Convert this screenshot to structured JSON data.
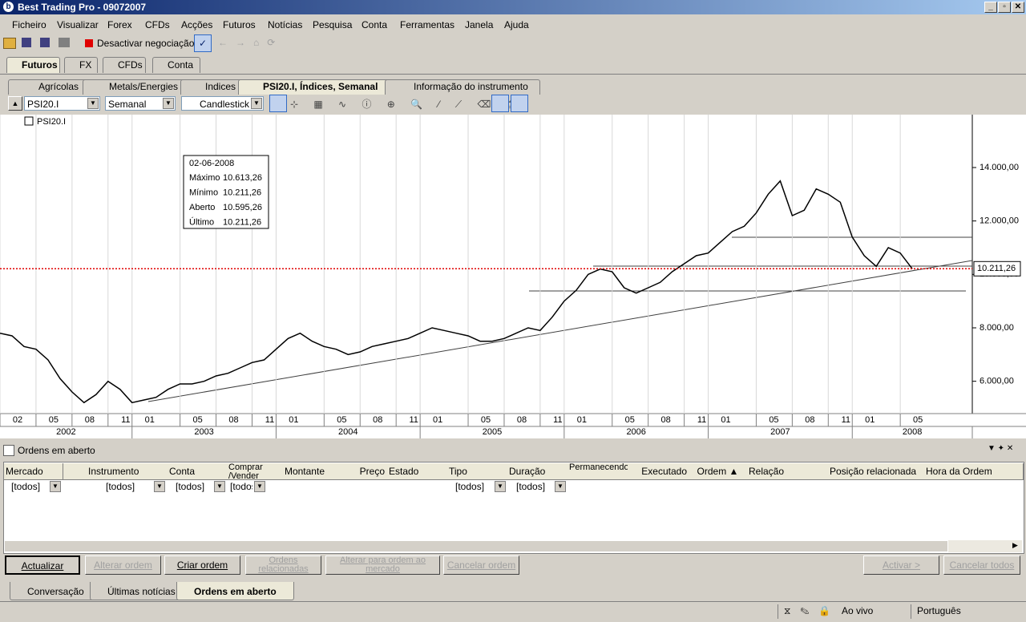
{
  "window": {
    "title": "Best Trading Pro - 09072007"
  },
  "menu": [
    "Ficheiro",
    "Visualizar",
    "Forex",
    "CFDs",
    "Acções",
    "Futuros",
    "Notícias",
    "Pesquisa",
    "Conta",
    "Ferramentas",
    "Janela",
    "Ajuda"
  ],
  "toolbar": {
    "trading_toggle": "Desactivar negociação"
  },
  "top_tabs": [
    "Futuros",
    "FX",
    "CFDs",
    "Conta"
  ],
  "instrument_tabs": [
    "Agrícolas",
    "Metals/Energies",
    "Indices",
    "PSI20.I, Índices, Semanal",
    "Informação do instrumento"
  ],
  "chart_toolbar": {
    "symbol": "PSI20.I",
    "period": "Semanal",
    "style": "Candlestick"
  },
  "chart_data": {
    "type": "line",
    "instrument_label": "PSI20.I",
    "x": [
      "2002-02",
      "2002-03",
      "2002-04",
      "2002-05",
      "2002-06",
      "2002-07",
      "2002-08",
      "2002-09",
      "2002-10",
      "2002-11",
      "2002-12",
      "2003-01",
      "2003-02",
      "2003-03",
      "2003-04",
      "2003-05",
      "2003-06",
      "2003-07",
      "2003-08",
      "2003-09",
      "2003-10",
      "2003-11",
      "2003-12",
      "2004-01",
      "2004-02",
      "2004-03",
      "2004-04",
      "2004-05",
      "2004-06",
      "2004-07",
      "2004-08",
      "2004-09",
      "2004-10",
      "2004-11",
      "2004-12",
      "2005-01",
      "2005-02",
      "2005-03",
      "2005-04",
      "2005-05",
      "2005-06",
      "2005-07",
      "2005-08",
      "2005-09",
      "2005-10",
      "2005-11",
      "2005-12",
      "2006-01",
      "2006-02",
      "2006-03",
      "2006-04",
      "2006-05",
      "2006-06",
      "2006-07",
      "2006-08",
      "2006-09",
      "2006-10",
      "2006-11",
      "2006-12",
      "2007-01",
      "2007-02",
      "2007-03",
      "2007-04",
      "2007-05",
      "2007-06",
      "2007-07",
      "2007-08",
      "2007-09",
      "2007-10",
      "2007-11",
      "2007-12",
      "2008-01",
      "2008-02",
      "2008-03",
      "2008-04",
      "2008-05",
      "2008-06"
    ],
    "series": [
      {
        "name": "PSI20.I",
        "color": "#000000",
        "values": [
          7800,
          7700,
          7300,
          7200,
          6800,
          6100,
          5600,
          5200,
          5500,
          6000,
          5700,
          5200,
          5300,
          5400,
          5700,
          5900,
          5900,
          6000,
          6200,
          6300,
          6500,
          6700,
          6800,
          7200,
          7600,
          7800,
          7500,
          7300,
          7200,
          7000,
          7100,
          7300,
          7400,
          7500,
          7600,
          7800,
          8000,
          7900,
          7800,
          7700,
          7500,
          7500,
          7600,
          7800,
          8000,
          7900,
          8400,
          9000,
          9400,
          10000,
          10200,
          10100,
          9500,
          9300,
          9500,
          9700,
          10100,
          10400,
          10700,
          10800,
          11200,
          11600,
          11800,
          12300,
          13000,
          13500,
          12200,
          12400,
          13200,
          13000,
          12700,
          11400,
          10700,
          10300,
          11000,
          10800,
          10211.26
        ]
      }
    ],
    "xlim": [
      "2002-02",
      "2008-11"
    ],
    "ylim": [
      4790,
      15980
    ],
    "yticks": [
      {
        "value": 6000,
        "label": "6.000,00"
      },
      {
        "value": 8000,
        "label": "8.000,00"
      },
      {
        "value": 10000,
        "label": "10.000,00"
      },
      {
        "value": 12000,
        "label": "12.000,00"
      },
      {
        "value": 14000,
        "label": "14.000,00"
      }
    ],
    "xticks": [
      {
        "value": "2002-02",
        "label": "02"
      },
      {
        "value": "2002-05",
        "label": "05"
      },
      {
        "value": "2002-08",
        "label": "08"
      },
      {
        "value": "2002-11",
        "label": "11"
      },
      {
        "value": "2003-01",
        "label": "01"
      },
      {
        "value": "2003-05",
        "label": "05"
      },
      {
        "value": "2003-08",
        "label": "08"
      },
      {
        "value": "2003-11",
        "label": "11"
      },
      {
        "value": "2004-01",
        "label": "01"
      },
      {
        "value": "2004-05",
        "label": "05"
      },
      {
        "value": "2004-08",
        "label": "08"
      },
      {
        "value": "2004-11",
        "label": "11"
      },
      {
        "value": "2005-01",
        "label": "01"
      },
      {
        "value": "2005-05",
        "label": "05"
      },
      {
        "value": "2005-08",
        "label": "08"
      },
      {
        "value": "2005-11",
        "label": "11"
      },
      {
        "value": "2006-01",
        "label": "01"
      },
      {
        "value": "2006-05",
        "label": "05"
      },
      {
        "value": "2006-08",
        "label": "08"
      },
      {
        "value": "2006-11",
        "label": "11"
      },
      {
        "value": "2007-01",
        "label": "01"
      },
      {
        "value": "2007-05",
        "label": "05"
      },
      {
        "value": "2007-08",
        "label": "08"
      },
      {
        "value": "2007-11",
        "label": "11"
      },
      {
        "value": "2008-01",
        "label": "01"
      },
      {
        "value": "2008-05",
        "label": "05"
      }
    ],
    "year_labels": [
      "2002",
      "2003",
      "2004",
      "2005",
      "2006",
      "2007",
      "2008"
    ],
    "grid": true,
    "last_price": {
      "value": 10211.26,
      "label": "10.211,26"
    },
    "tooltip": {
      "date": "02-06-2008",
      "rows": [
        {
          "label": "Máximo",
          "value": "10.613,26"
        },
        {
          "label": "Mínimo",
          "value": "10.211,26"
        },
        {
          "label": "Aberto",
          "value": "10.595,26"
        },
        {
          "label": "Último",
          "value": "10.211,26"
        }
      ]
    }
  },
  "orders": {
    "title": "Ordens em aberto",
    "columns": [
      "Mercado",
      "Instrumento",
      "Conta",
      "Comprar /Vender",
      "Montante",
      "Preço",
      "Estado",
      "Tipo",
      "Duração",
      "Permanecendo",
      "Executado",
      "Ordem ▲",
      "Relação",
      "Posição relacionada",
      "Hora da Ordem"
    ],
    "filters": [
      "[todos]",
      "[todos]",
      "[todos]",
      "[todos]",
      "[todos]",
      "[todos]"
    ],
    "buttons": [
      "Actualizar",
      "Alterar ordem",
      "Criar ordem",
      "Ordens relacionadas",
      "Alterar para ordem ao mercado",
      "Cancelar ordem",
      "Activar >",
      "Cancelar todos"
    ]
  },
  "bottom_tabs": [
    "Conversação",
    "Últimas notícias",
    "Ordens em aberto"
  ],
  "status": {
    "mode": "Ao vivo",
    "language": "Português"
  }
}
